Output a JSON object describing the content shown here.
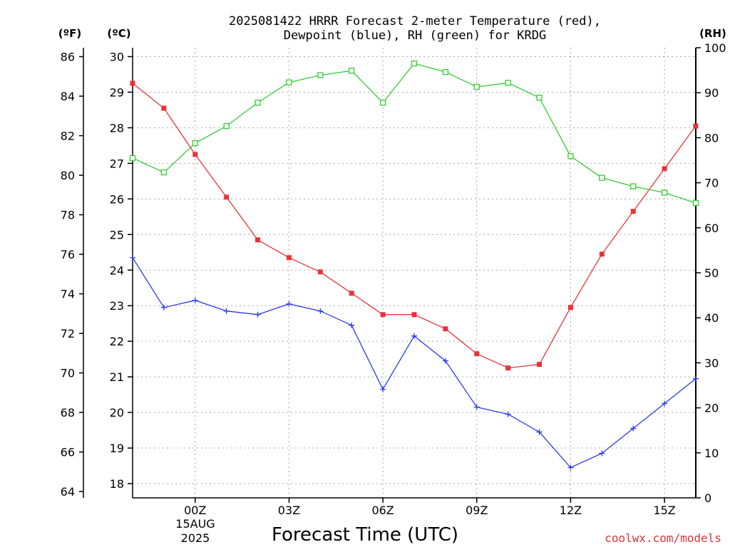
{
  "chart_data": {
    "type": "line",
    "title_line1": "2025081422 HRRR Forecast 2-meter Temperature (red),",
    "title_line2": "Dewpoint (blue), RH (green) for KRDG",
    "xlabel": "Forecast Time (UTC)",
    "credit": "coolwx.com/models",
    "units": {
      "f": "(ºF)",
      "c": "(ºC)",
      "rh": "(RH)"
    },
    "date_label": [
      "15AUG",
      "2025"
    ],
    "x_ticks": [
      {
        "hour": 0,
        "label": "00Z"
      },
      {
        "hour": 3,
        "label": "03Z"
      },
      {
        "hour": 6,
        "label": "06Z"
      },
      {
        "hour": 9,
        "label": "09Z"
      },
      {
        "hour": 12,
        "label": "12Z"
      },
      {
        "hour": 15,
        "label": "15Z"
      }
    ],
    "x_range": [
      -2,
      16
    ],
    "ylim_c": [
      17.6,
      30.25
    ],
    "ylim_rh": [
      0,
      100
    ],
    "c_ticks": [
      18,
      19,
      20,
      21,
      22,
      23,
      24,
      25,
      26,
      27,
      28,
      29,
      30
    ],
    "f_ticks": [
      64,
      66,
      68,
      70,
      72,
      74,
      76,
      78,
      80,
      82,
      84,
      86
    ],
    "rh_ticks": [
      0,
      10,
      20,
      30,
      40,
      50,
      60,
      70,
      80,
      90,
      100
    ],
    "grid": true,
    "x": [
      -2,
      -1,
      0,
      1,
      2,
      3,
      4,
      5,
      6,
      7,
      8,
      9,
      10,
      11,
      12,
      13,
      14,
      15,
      16
    ],
    "series": [
      {
        "name": "Temperature",
        "axis": "c",
        "color": "#e8333a",
        "marker": "filled-square",
        "values": [
          29.25,
          28.55,
          27.25,
          26.05,
          24.85,
          24.35,
          23.95,
          23.35,
          22.75,
          22.75,
          22.35,
          21.65,
          21.25,
          21.35,
          22.95,
          24.45,
          25.65,
          26.85,
          28.05
        ]
      },
      {
        "name": "Dewpoint",
        "axis": "c",
        "color": "#2a3be8",
        "marker": "plus",
        "values": [
          24.35,
          22.95,
          23.15,
          22.85,
          22.75,
          23.05,
          22.85,
          22.45,
          20.65,
          22.15,
          21.45,
          20.15,
          19.95,
          19.45,
          18.45,
          18.85,
          19.55,
          20.25,
          20.95
        ]
      },
      {
        "name": "RH",
        "axis": "rh",
        "color": "#33cc33",
        "marker": "open-square",
        "values": [
          75.5,
          72.3,
          78.8,
          82.6,
          87.8,
          92.3,
          93.9,
          94.9,
          87.8,
          96.5,
          94.6,
          91.3,
          92.2,
          88.9,
          75.9,
          71.1,
          69.2,
          67.8,
          65.5
        ]
      }
    ]
  }
}
